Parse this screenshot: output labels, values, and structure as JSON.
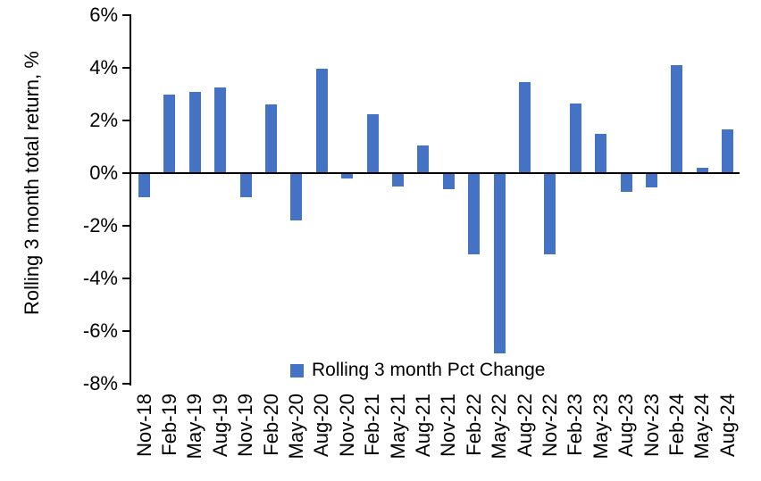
{
  "chart_data": {
    "type": "bar",
    "title": "",
    "xlabel": "",
    "ylabel": "Rolling 3 month total return, %",
    "ylim": [
      -8,
      6
    ],
    "yticks": [
      6,
      4,
      2,
      0,
      -2,
      -4,
      -6,
      -8
    ],
    "ytick_labels": [
      "6%",
      "4%",
      "2%",
      "0%",
      "-2%",
      "-4%",
      "-6%",
      "-8%"
    ],
    "grid": false,
    "legend_position": "bottom-center",
    "bar_color": "#4472C4",
    "axis_color": "#000000",
    "background_color": "#FFFFFF",
    "categories": [
      "Nov-18",
      "Feb-19",
      "May-19",
      "Aug-19",
      "Nov-19",
      "Feb-20",
      "May-20",
      "Aug-20",
      "Nov-20",
      "Feb-21",
      "May-21",
      "Aug-21",
      "Nov-21",
      "Feb-22",
      "May-22",
      "Aug-22",
      "Nov-22",
      "Feb-23",
      "May-23",
      "Aug-23",
      "Nov-23",
      "Feb-24",
      "May-24",
      "Aug-24"
    ],
    "series": [
      {
        "name": "Rolling 3 month Pct Change",
        "values": [
          -0.9,
          3.0,
          3.1,
          3.25,
          -0.9,
          2.6,
          -1.8,
          3.95,
          -0.2,
          2.25,
          -0.5,
          1.05,
          -0.6,
          -3.1,
          -6.85,
          3.45,
          -3.1,
          2.65,
          1.5,
          -0.7,
          -0.55,
          4.1,
          0.2,
          1.65
        ]
      }
    ]
  }
}
